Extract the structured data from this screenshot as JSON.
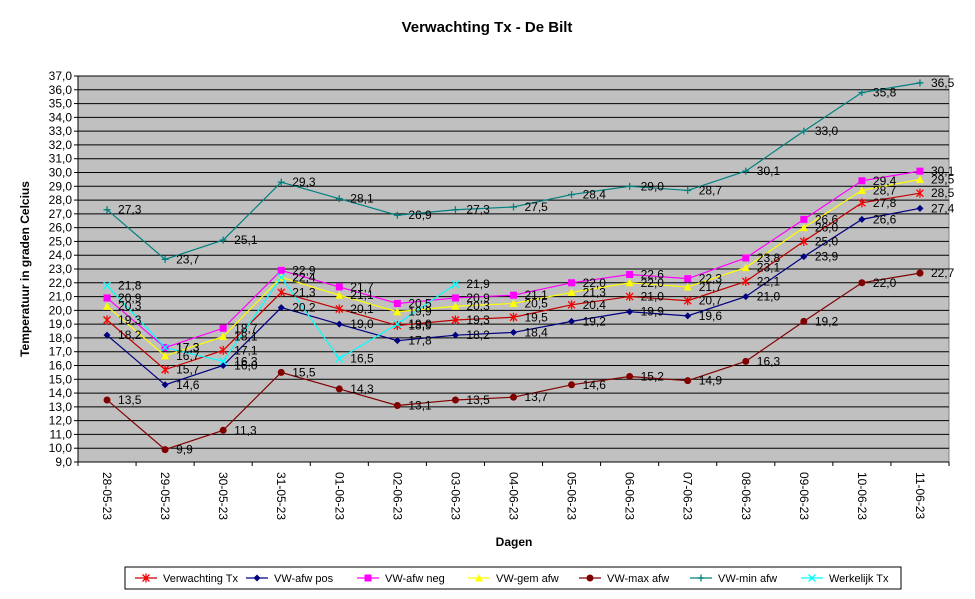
{
  "chart_data": {
    "type": "line",
    "title": "Verwachting Tx - De Bilt",
    "xlabel": "Dagen",
    "ylabel": "Temperatuur in graden Celcius",
    "ylim": [
      9.0,
      37.0
    ],
    "ystep": 1.0,
    "grid": true,
    "legend_position": "bottom",
    "plot_background": "#c0c0c0",
    "categories": [
      "28-05-23",
      "29-05-23",
      "30-05-23",
      "31-05-23",
      "01-06-23",
      "02-06-23",
      "03-06-23",
      "04-06-23",
      "05-06-23",
      "06-06-23",
      "07-06-23",
      "08-06-23",
      "09-06-23",
      "10-06-23",
      "11-06-23"
    ],
    "series": [
      {
        "name": "Verwachting Tx",
        "color": "#ff0000",
        "line_color": "#c00000",
        "marker": "star",
        "values": [
          19.3,
          15.7,
          17.1,
          21.3,
          20.1,
          18.9,
          19.3,
          19.5,
          20.4,
          21.0,
          20.7,
          22.1,
          25.0,
          27.8,
          28.5
        ]
      },
      {
        "name": "VW-afw pos",
        "color": "#000080",
        "line_color": "#000080",
        "marker": "diamond",
        "values": [
          18.2,
          14.6,
          16.0,
          20.2,
          19.0,
          17.8,
          18.2,
          18.4,
          19.2,
          19.9,
          19.6,
          21.0,
          23.9,
          26.6,
          27.4
        ]
      },
      {
        "name": "VW-afw neg",
        "color": "#ff00ff",
        "line_color": "#ff00ff",
        "marker": "square",
        "values": [
          20.9,
          17.3,
          18.7,
          22.9,
          21.7,
          20.5,
          20.9,
          21.1,
          22.0,
          22.6,
          22.3,
          23.8,
          26.6,
          29.4,
          30.1
        ]
      },
      {
        "name": "VW-gem afw",
        "color": "#ffff00",
        "line_color": "#ffff00",
        "marker": "triangle",
        "values": [
          20.3,
          16.7,
          18.1,
          22.4,
          21.1,
          19.9,
          20.3,
          20.5,
          21.3,
          22.0,
          21.7,
          23.1,
          26.0,
          28.7,
          29.5
        ]
      },
      {
        "name": "VW-max afw",
        "color": "#800000",
        "line_color": "#800000",
        "marker": "circle",
        "values": [
          13.5,
          9.9,
          11.3,
          15.5,
          14.3,
          13.1,
          13.5,
          13.7,
          14.6,
          15.2,
          14.9,
          16.3,
          19.2,
          22.0,
          22.7
        ]
      },
      {
        "name": "VW-min afw",
        "color": "#008080",
        "line_color": "#008080",
        "marker": "plus",
        "values": [
          27.3,
          23.7,
          25.1,
          29.3,
          28.1,
          26.9,
          27.3,
          27.5,
          28.4,
          29.0,
          28.7,
          30.1,
          33.0,
          35.8,
          36.5
        ]
      },
      {
        "name": "Werkelijk Tx",
        "color": "#00ffff",
        "line_color": "#00ffff",
        "marker": "x",
        "values": [
          21.8,
          17.3,
          16.3,
          22.4,
          16.5,
          19.0,
          21.9,
          null,
          null,
          null,
          null,
          null,
          null,
          null,
          null
        ]
      }
    ]
  }
}
